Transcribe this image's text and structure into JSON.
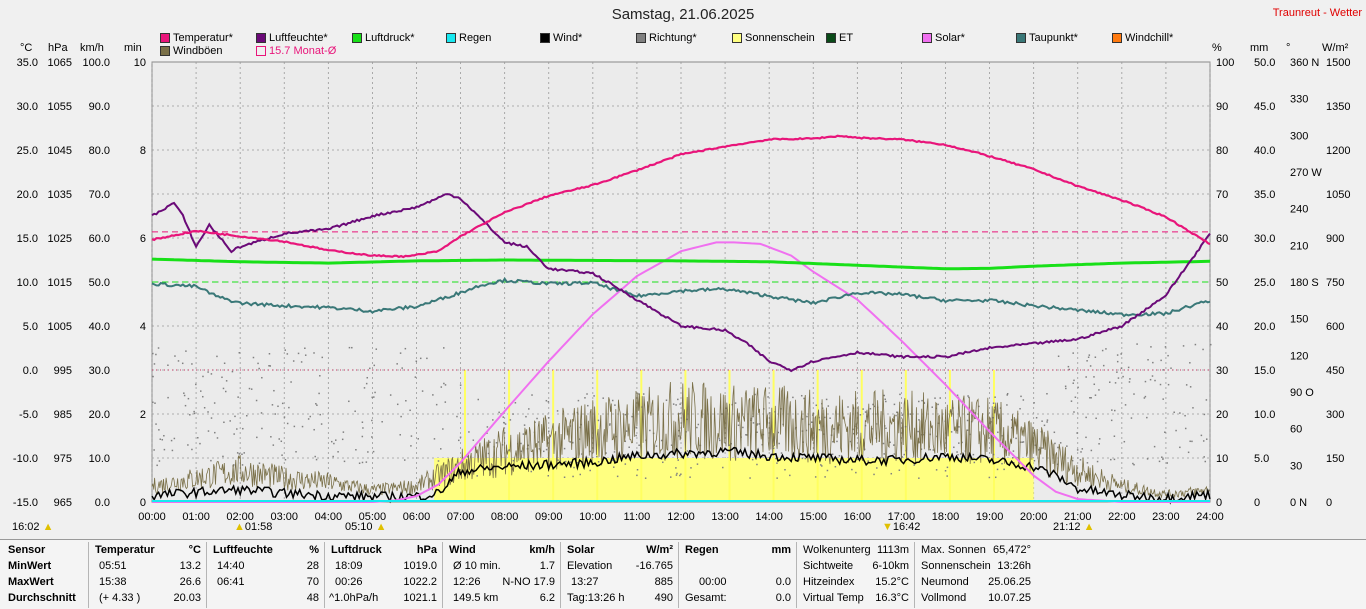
{
  "title": "Samstag, 21.06.2025",
  "station": "Traunreut - Wetter",
  "legend": [
    {
      "label": "Temperatur*",
      "color": "#e8157a"
    },
    {
      "label": "Luftfeuchte*",
      "color": "#6b0a78"
    },
    {
      "label": "Luftdruck*",
      "color": "#18e018"
    },
    {
      "label": "Regen",
      "color": "#18e8f0"
    },
    {
      "label": "Wind*",
      "color": "#000000"
    },
    {
      "label": "Richtung*",
      "color": "#808080"
    },
    {
      "label": "Sonnenschein",
      "color": "#ffff80"
    },
    {
      "label": "ET",
      "color": "#0a4a18"
    },
    {
      "label": "Solar*",
      "color": "#f070f0"
    },
    {
      "label": "Taupunkt*",
      "color": "#3a7878"
    },
    {
      "label": "Windchill*",
      "color": "#ff7a10"
    },
    {
      "label": "Windböen",
      "color": "#7a7048"
    },
    {
      "label": "15.7 Monat-Ø",
      "color": "#e8157a"
    }
  ],
  "units": {
    "left": [
      "°C",
      "hPa",
      "km/h",
      "min"
    ],
    "right": [
      "%",
      "mm",
      "°",
      "W/m²"
    ]
  },
  "sun_markers": {
    "left_time": "16:02",
    "sunrise": "01:58",
    "sunrise2": "05:10",
    "sunset": "16:42",
    "sunset2": "21:12"
  },
  "chart_data": {
    "type": "line",
    "x_ticks": [
      "00:00",
      "01:00",
      "02:00",
      "03:00",
      "04:00",
      "05:00",
      "06:00",
      "07:00",
      "08:00",
      "09:00",
      "10:00",
      "11:00",
      "12:00",
      "13:00",
      "14:00",
      "15:00",
      "16:00",
      "17:00",
      "18:00",
      "19:00",
      "20:00",
      "21:00",
      "22:00",
      "23:00",
      "24:00"
    ],
    "axes": {
      "temp_c": [
        "35.0",
        "30.0",
        "25.0",
        "20.0",
        "15.0",
        "10.0",
        "5.0",
        "0.0",
        "-5.0",
        "-10.0",
        "-15.0"
      ],
      "hpa": [
        "1065",
        "1055",
        "1045",
        "1035",
        "1025",
        "1015",
        "1005",
        "995",
        "985",
        "975",
        "965"
      ],
      "kmh": [
        "100.0",
        "90.0",
        "80.0",
        "70.0",
        "60.0",
        "50.0",
        "40.0",
        "30.0",
        "20.0",
        "10.0",
        "0.0"
      ],
      "min": [
        "10",
        "",
        "8",
        "",
        "6",
        "",
        "4",
        "",
        "2",
        "",
        "0"
      ],
      "percent": [
        "100",
        "90",
        "80",
        "70",
        "60",
        "50",
        "40",
        "30",
        "20",
        "10",
        "0"
      ],
      "mm": [
        "50.0",
        "45.0",
        "40.0",
        "35.0",
        "30.0",
        "25.0",
        "20.0",
        "15.0",
        "10.0",
        "5.0",
        "0"
      ],
      "deg": [
        "360 N",
        "330",
        "300",
        "270 W",
        "240",
        "210",
        "180 S",
        "150",
        "120",
        "90 O",
        "60",
        "30",
        "0 N"
      ],
      "wm2": [
        "1500",
        "1350",
        "1200",
        "1050",
        "900",
        "750",
        "600",
        "450",
        "300",
        "150",
        "0"
      ]
    },
    "series": [
      {
        "name": "Temperatur*",
        "axis": "°C",
        "color": "#e8157a",
        "x": [
          0,
          1,
          2,
          3,
          4,
          5,
          5.8,
          6.5,
          7,
          8,
          9,
          10,
          11,
          12,
          13,
          14,
          15,
          15.6,
          16,
          17,
          18,
          19,
          20,
          21,
          22,
          23,
          24
        ],
        "y": [
          14.8,
          15.8,
          15.2,
          14.6,
          13.6,
          13.0,
          12.9,
          13.5,
          15.2,
          17.9,
          19.8,
          21.0,
          22.7,
          24.5,
          25.4,
          26.2,
          26.3,
          26.6,
          26.4,
          26.2,
          25.6,
          24.3,
          22.8,
          20.9,
          19.3,
          17.4,
          14.3
        ]
      },
      {
        "name": "Luftfeuchte*",
        "axis": "%",
        "color": "#6b0a78",
        "x": [
          0,
          0.5,
          0.7,
          1,
          1.3,
          1.8,
          2,
          3,
          4,
          5,
          6,
          6.7,
          7,
          8,
          8.5,
          9,
          10,
          11,
          12,
          13,
          13.5,
          14,
          14.5,
          15,
          16,
          17,
          18,
          19,
          20,
          21,
          22,
          23,
          23.5,
          24
        ],
        "y": [
          65,
          68,
          65,
          58,
          63,
          57,
          58,
          61,
          62,
          65,
          67,
          70,
          69,
          59,
          58,
          53,
          52,
          46,
          40,
          39,
          36,
          32,
          30,
          32,
          34,
          33,
          33,
          35,
          36,
          37,
          40,
          47,
          54,
          61
        ]
      },
      {
        "name": "Luftdruck*",
        "axis": "hPa",
        "color": "#18e018",
        "x": [
          0,
          2,
          4,
          6,
          8,
          10,
          12,
          14,
          16,
          18,
          19,
          20,
          22,
          24
        ],
        "y": [
          1020.2,
          1019.6,
          1019.3,
          1019.8,
          1020.0,
          1019.9,
          1019.8,
          1019.6,
          1018.8,
          1018.0,
          1018.1,
          1018.6,
          1019.3,
          1019.7
        ]
      },
      {
        "name": "Taupunkt*",
        "axis": "°C",
        "color": "#3a7878",
        "x": [
          0,
          1,
          1.5,
          2,
          3,
          4,
          5,
          6,
          7,
          7.5,
          8,
          9,
          10,
          11,
          12,
          13,
          14,
          15,
          16,
          17,
          18,
          19,
          20,
          21,
          22,
          23,
          23.5,
          24
        ],
        "y": [
          9.8,
          9.5,
          8.3,
          7.6,
          7.3,
          7.1,
          6.7,
          7.2,
          8.8,
          9.7,
          10.2,
          9.8,
          9.9,
          8.4,
          9.0,
          9.2,
          8.4,
          7.6,
          8.8,
          8.6,
          7.9,
          7.9,
          7.3,
          6.8,
          6.3,
          6.4,
          7.2,
          7.9
        ]
      },
      {
        "name": "Solar*",
        "axis": "W/m²",
        "color": "#f070f0",
        "x": [
          0,
          5,
          5.5,
          6,
          6.5,
          7,
          8,
          9,
          10,
          11,
          12,
          12.8,
          13.2,
          13.8,
          14.5,
          15,
          16,
          17,
          18,
          19,
          20,
          20.5,
          21,
          22,
          24
        ],
        "y": [
          0,
          0,
          5,
          20,
          60,
          135,
          310,
          480,
          640,
          770,
          855,
          885,
          885,
          880,
          840,
          785,
          690,
          550,
          400,
          240,
          90,
          35,
          10,
          0,
          0
        ]
      },
      {
        "name": "Wind*",
        "axis": "km/h",
        "color": "#000000",
        "x": [
          0,
          1,
          2,
          3,
          4,
          5,
          6,
          6.5,
          7,
          8,
          9,
          10,
          11,
          12,
          13,
          14,
          15,
          16,
          17,
          18,
          19,
          20,
          20.5,
          21,
          22,
          23,
          24
        ],
        "y": [
          1.5,
          2.2,
          2.8,
          2.0,
          1.5,
          1.2,
          1.3,
          2.0,
          7.0,
          8.0,
          8.5,
          9.0,
          10.5,
          11.0,
          11.5,
          10.5,
          10.0,
          9.5,
          9.5,
          10.5,
          9.5,
          8.0,
          6.0,
          3.0,
          1.5,
          1.0,
          1.7
        ]
      },
      {
        "name": "Windböen",
        "axis": "km/h",
        "color": "#7a7048",
        "x": [
          0,
          1,
          2,
          3,
          4,
          5,
          6,
          7,
          8,
          9,
          10,
          11,
          12,
          13,
          14,
          15,
          16,
          17,
          18,
          19,
          20,
          21,
          22,
          23,
          24
        ],
        "y": [
          4,
          6,
          8,
          6,
          5,
          3,
          4,
          9,
          13,
          15,
          18,
          19,
          21,
          20,
          20,
          19,
          19,
          19,
          18,
          18,
          14,
          8,
          4,
          2,
          3
        ]
      }
    ],
    "sunshine": {
      "axis": "min",
      "x": [
        6.4,
        20.0
      ],
      "level_min": 1.0
    },
    "reference_lines": [
      {
        "label": "15.7 Monat-Ø",
        "value": 15.7,
        "axis": "°C",
        "color": "#e8157a"
      }
    ]
  },
  "summary": {
    "headers": {
      "sensor": "Sensor",
      "temp": "Temperatur",
      "temp_unit": "°C",
      "hum": "Luftfeuchte",
      "hum_unit": "%",
      "press": "Luftdruck",
      "press_unit": "hPa",
      "wind": "Wind",
      "wind_unit": "km/h",
      "solar": "Solar",
      "solar_unit": "W/m²",
      "rain": "Regen",
      "rain_unit": "mm"
    },
    "rows": [
      "MinWert",
      "MaxWert",
      "Durchschnitt"
    ],
    "temp": [
      [
        "05:51",
        "13.2"
      ],
      [
        "15:38",
        "26.6"
      ],
      [
        "(+ 4.33 )",
        "20.03"
      ]
    ],
    "hum": [
      [
        "14:40",
        "28"
      ],
      [
        "06:41",
        "70"
      ],
      [
        "",
        "48"
      ]
    ],
    "press": [
      [
        "18:09",
        "1019.0"
      ],
      [
        "00:26",
        "1022.2"
      ],
      [
        "^1.0hPa/h",
        "1021.1"
      ]
    ],
    "wind": [
      [
        "Ø 10 min.",
        "1.7"
      ],
      [
        "12:26",
        "N-NO 17.9"
      ],
      [
        "149.5 km",
        "6.2"
      ]
    ],
    "solar": [
      [
        "Elevation",
        "-16.765"
      ],
      [
        "13:27",
        "885"
      ],
      [
        "Tag:13:26 h",
        "490"
      ]
    ],
    "rain": [
      [
        "",
        ""
      ],
      [
        "00:00",
        "0.0"
      ],
      [
        "Gesamt:",
        "0.0"
      ]
    ],
    "misc1": [
      [
        "Wolkenunterg",
        "1113m"
      ],
      [
        "Sichtweite",
        "6-10km"
      ],
      [
        "Hitzeindex",
        "15.2°C"
      ],
      [
        "Virtual Temp",
        "16.3°C"
      ]
    ],
    "misc2": [
      [
        "Max. Sonnen",
        "65,472°"
      ],
      [
        "Sonnenschein",
        "13:26h"
      ],
      [
        "Neumond",
        "25.06.25"
      ],
      [
        "Vollmond",
        "10.07.25"
      ]
    ]
  }
}
